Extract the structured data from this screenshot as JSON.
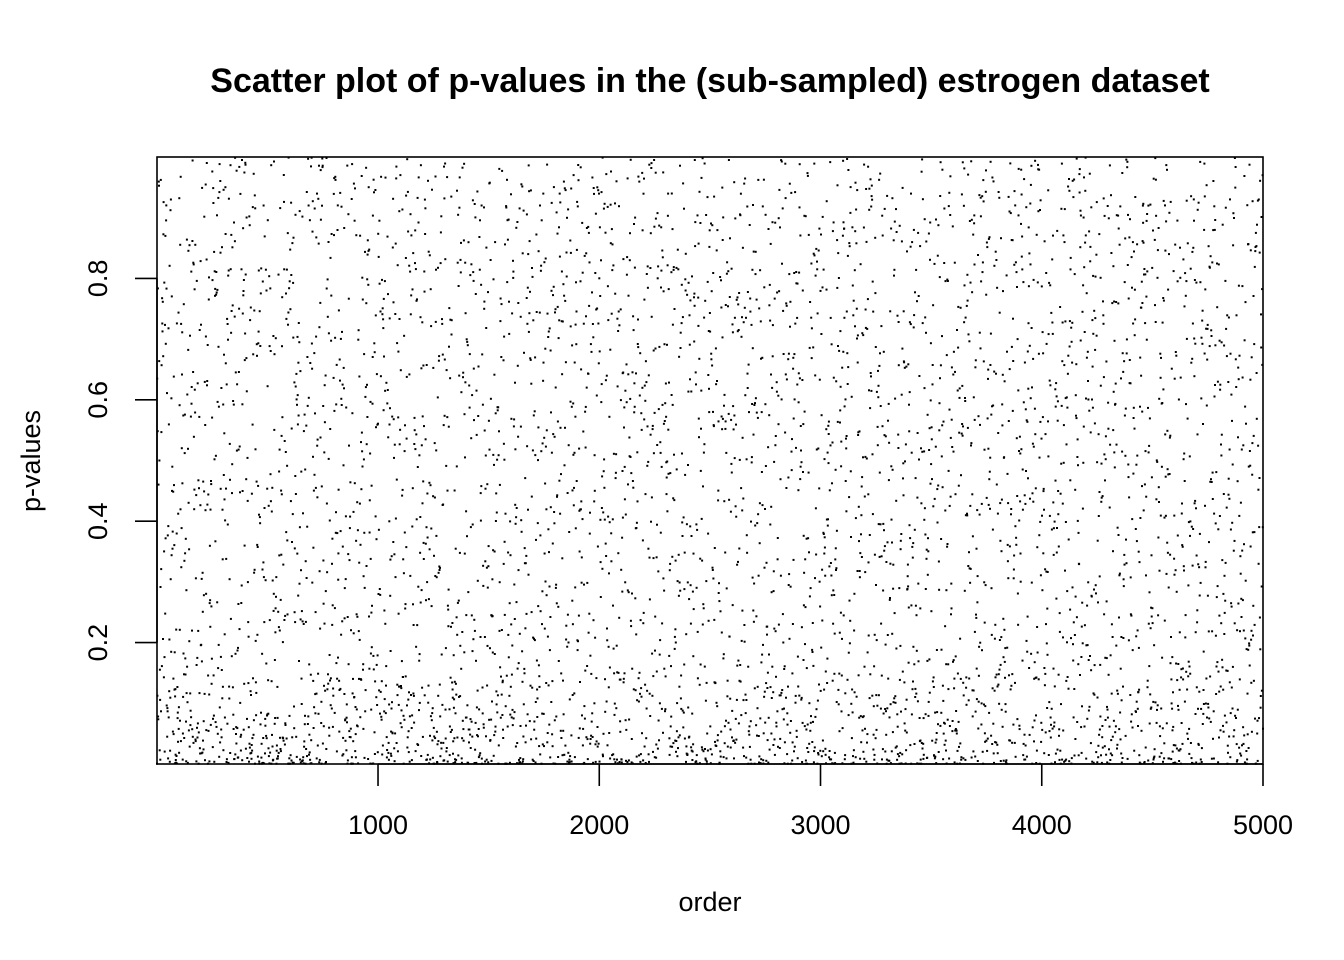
{
  "chart_data": {
    "type": "scatter",
    "title": "Scatter plot of p-values in the (sub-sampled) estrogen dataset",
    "xlabel": "order",
    "ylabel": "p-values",
    "xlim": [
      1,
      5000
    ],
    "ylim": [
      0,
      1
    ],
    "x_ticks": [
      1000,
      2000,
      3000,
      4000,
      5000
    ],
    "x_tick_labels": [
      "1000",
      "2000",
      "3000",
      "4000",
      "5000"
    ],
    "y_ticks": [
      0.2,
      0.4,
      0.6,
      0.8
    ],
    "y_tick_labels": [
      "0.2",
      "0.4",
      "0.6",
      "0.8"
    ],
    "grid": false,
    "legend": "none",
    "point_color": "#000000",
    "n_points": 5000,
    "description": "one p-value per gene index 1..5000; points are dense near 0 (especially for low order) and roughly uniform above",
    "sample_points": [
      [
        5,
        0.004
      ],
      [
        20,
        0.01
      ],
      [
        40,
        0.02
      ],
      [
        60,
        0.06
      ],
      [
        80,
        0.03
      ],
      [
        100,
        0.08
      ],
      [
        120,
        0.015
      ],
      [
        150,
        0.33
      ],
      [
        180,
        0.52
      ],
      [
        200,
        0.05
      ],
      [
        260,
        0.62
      ],
      [
        300,
        0.89
      ],
      [
        350,
        0.96
      ],
      [
        400,
        0.2
      ],
      [
        500,
        0.72
      ],
      [
        560,
        0.9
      ],
      [
        700,
        0.5
      ],
      [
        900,
        0.99
      ],
      [
        1000,
        0.85
      ],
      [
        1200,
        0.03
      ],
      [
        1300,
        0.45
      ],
      [
        1500,
        0.84
      ],
      [
        1700,
        0.78
      ],
      [
        1900,
        0.97
      ],
      [
        2100,
        0.61
      ],
      [
        2300,
        0.1
      ],
      [
        2500,
        0.28
      ],
      [
        2700,
        0.7
      ],
      [
        2900,
        0.18
      ],
      [
        3100,
        0.05
      ],
      [
        3300,
        0.99
      ],
      [
        3500,
        0.93
      ],
      [
        3700,
        0.27
      ],
      [
        3900,
        0.6
      ],
      [
        4100,
        0.18
      ],
      [
        4300,
        0.83
      ],
      [
        4500,
        0.3
      ],
      [
        4700,
        0.65
      ],
      [
        4900,
        0.73
      ],
      [
        5000,
        0.12
      ]
    ]
  }
}
